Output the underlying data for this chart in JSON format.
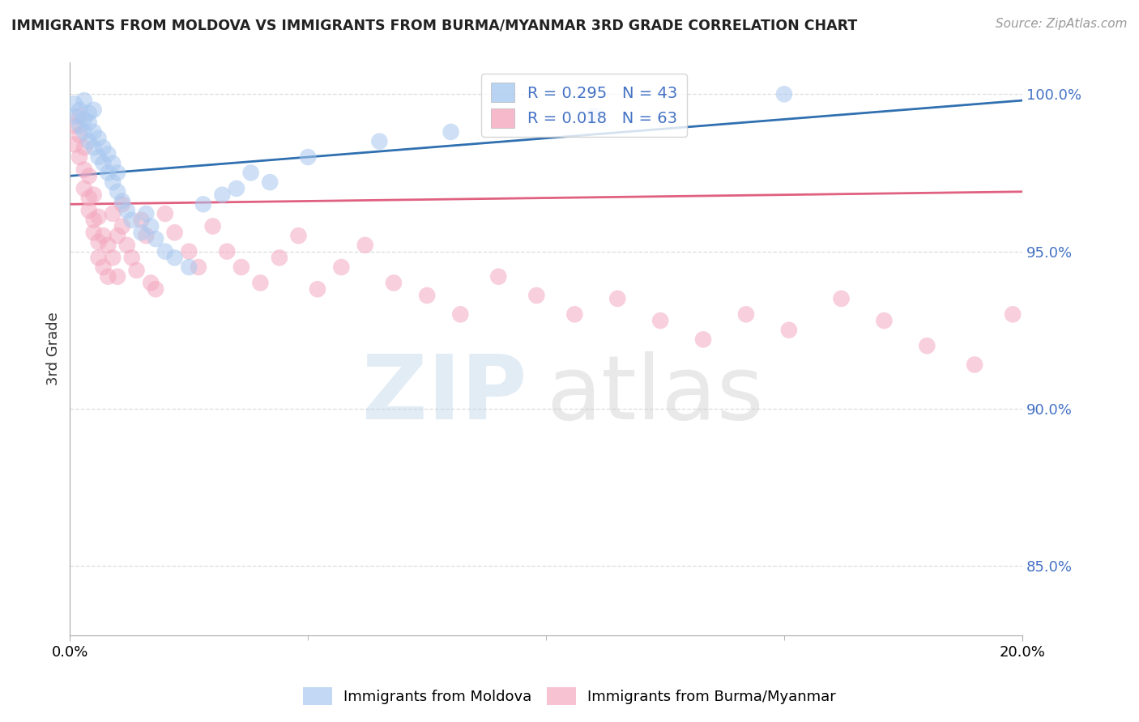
{
  "title": "IMMIGRANTS FROM MOLDOVA VS IMMIGRANTS FROM BURMA/MYANMAR 3RD GRADE CORRELATION CHART",
  "source": "Source: ZipAtlas.com",
  "ylabel": "3rd Grade",
  "xlim": [
    0.0,
    0.2
  ],
  "ylim": [
    0.828,
    1.01
  ],
  "moldova_R": 0.295,
  "moldova_N": 43,
  "burma_R": 0.018,
  "burma_N": 63,
  "moldova_color": "#a8c8f0",
  "burma_color": "#f4a8c0",
  "moldova_line_color": "#3070b0",
  "burma_line_color": "#e06080",
  "legend_moldova": "Immigrants from Moldova",
  "legend_burma": "Immigrants from Burma/Myanmar",
  "legend_label_color": "#4472c4",
  "grid_color": "#dddddd",
  "title_color": "#222222",
  "source_color": "#999999",
  "ytick_vals": [
    0.85,
    0.9,
    0.95,
    1.0
  ],
  "ytick_labels": [
    "85.0%",
    "90.0%",
    "95.0%",
    "100.0%"
  ],
  "moldova_x": [
    0.001,
    0.001,
    0.002,
    0.002,
    0.003,
    0.003,
    0.003,
    0.004,
    0.004,
    0.004,
    0.005,
    0.005,
    0.005,
    0.006,
    0.006,
    0.007,
    0.007,
    0.008,
    0.008,
    0.009,
    0.009,
    0.01,
    0.01,
    0.011,
    0.012,
    0.013,
    0.015,
    0.016,
    0.017,
    0.018,
    0.02,
    0.022,
    0.025,
    0.028,
    0.032,
    0.035,
    0.038,
    0.042,
    0.05,
    0.065,
    0.08,
    0.11,
    0.15
  ],
  "moldova_y": [
    0.997,
    0.993,
    0.995,
    0.99,
    0.992,
    0.988,
    0.998,
    0.985,
    0.991,
    0.994,
    0.983,
    0.988,
    0.995,
    0.98,
    0.986,
    0.978,
    0.983,
    0.975,
    0.981,
    0.972,
    0.978,
    0.969,
    0.975,
    0.966,
    0.963,
    0.96,
    0.956,
    0.962,
    0.958,
    0.954,
    0.95,
    0.948,
    0.945,
    0.965,
    0.968,
    0.97,
    0.975,
    0.972,
    0.98,
    0.985,
    0.988,
    0.993,
    1.0
  ],
  "burma_x": [
    0.001,
    0.001,
    0.002,
    0.002,
    0.002,
    0.003,
    0.003,
    0.003,
    0.004,
    0.004,
    0.004,
    0.005,
    0.005,
    0.005,
    0.006,
    0.006,
    0.006,
    0.007,
    0.007,
    0.008,
    0.008,
    0.009,
    0.009,
    0.01,
    0.01,
    0.011,
    0.011,
    0.012,
    0.013,
    0.014,
    0.015,
    0.016,
    0.017,
    0.018,
    0.02,
    0.022,
    0.025,
    0.027,
    0.03,
    0.033,
    0.036,
    0.04,
    0.044,
    0.048,
    0.052,
    0.057,
    0.062,
    0.068,
    0.075,
    0.082,
    0.09,
    0.098,
    0.106,
    0.115,
    0.124,
    0.133,
    0.142,
    0.151,
    0.162,
    0.171,
    0.18,
    0.19,
    0.198
  ],
  "burma_y": [
    0.99,
    0.984,
    0.987,
    0.98,
    0.993,
    0.976,
    0.983,
    0.97,
    0.967,
    0.974,
    0.963,
    0.96,
    0.968,
    0.956,
    0.953,
    0.961,
    0.948,
    0.955,
    0.945,
    0.952,
    0.942,
    0.962,
    0.948,
    0.955,
    0.942,
    0.958,
    0.965,
    0.952,
    0.948,
    0.944,
    0.96,
    0.955,
    0.94,
    0.938,
    0.962,
    0.956,
    0.95,
    0.945,
    0.958,
    0.95,
    0.945,
    0.94,
    0.948,
    0.955,
    0.938,
    0.945,
    0.952,
    0.94,
    0.936,
    0.93,
    0.942,
    0.936,
    0.93,
    0.935,
    0.928,
    0.922,
    0.93,
    0.925,
    0.935,
    0.928,
    0.92,
    0.914,
    0.93
  ]
}
